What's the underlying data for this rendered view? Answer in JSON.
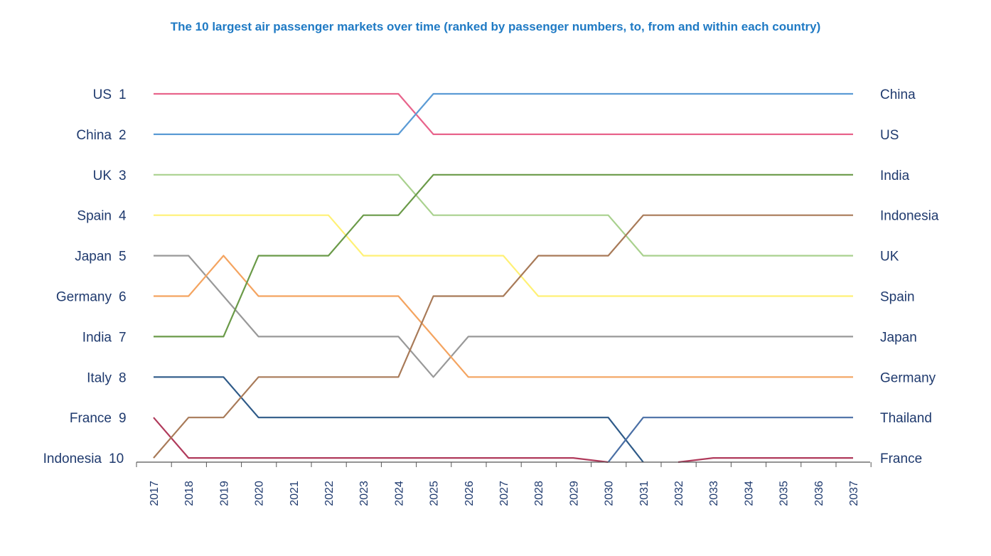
{
  "chart_data": {
    "type": "line",
    "title": "The 10 largest air passenger markets over time (ranked by passenger numbers, to, from and within each country)",
    "x": [
      2017,
      2018,
      2019,
      2020,
      2021,
      2022,
      2023,
      2024,
      2025,
      2026,
      2027,
      2028,
      2029,
      2030,
      2031,
      2032,
      2033,
      2034,
      2035,
      2036,
      2037
    ],
    "x_tick_labels": [
      "2017",
      "2018",
      "2019",
      "2020",
      "2021",
      "2022",
      "2023",
      "2024",
      "2025",
      "2026",
      "2027",
      "2028",
      "2029",
      "2030",
      "2031",
      "2032",
      "2033",
      "2034",
      "2035",
      "2036",
      "2037"
    ],
    "y_reversed": true,
    "ylim": [
      1,
      10
    ],
    "left_labels": [
      {
        "rank": 1,
        "country": "US",
        "rank_label": "1"
      },
      {
        "rank": 2,
        "country": "China",
        "rank_label": "2"
      },
      {
        "rank": 3,
        "country": "UK",
        "rank_label": "3"
      },
      {
        "rank": 4,
        "country": "Spain",
        "rank_label": "4"
      },
      {
        "rank": 5,
        "country": "Japan",
        "rank_label": "5"
      },
      {
        "rank": 6,
        "country": "Germany",
        "rank_label": "6"
      },
      {
        "rank": 7,
        "country": "India",
        "rank_label": "7"
      },
      {
        "rank": 8,
        "country": "Italy",
        "rank_label": "8"
      },
      {
        "rank": 9,
        "country": "France",
        "rank_label": "9"
      },
      {
        "rank": 10,
        "country": "Indonesia",
        "rank_label": "10"
      }
    ],
    "right_labels": [
      {
        "rank": 1,
        "country": "China"
      },
      {
        "rank": 2,
        "country": "US"
      },
      {
        "rank": 3,
        "country": "India"
      },
      {
        "rank": 4,
        "country": "Indonesia"
      },
      {
        "rank": 5,
        "country": "UK"
      },
      {
        "rank": 6,
        "country": "Spain"
      },
      {
        "rank": 7,
        "country": "Japan"
      },
      {
        "rank": 8,
        "country": "Germany"
      },
      {
        "rank": 9,
        "country": "Thailand"
      },
      {
        "rank": 10,
        "country": "France"
      }
    ],
    "series": [
      {
        "name": "US",
        "color": "#e8648c",
        "values": [
          1,
          1,
          1,
          1,
          1,
          1,
          1,
          1,
          2,
          2,
          2,
          2,
          2,
          2,
          2,
          2,
          2,
          2,
          2,
          2,
          2
        ]
      },
      {
        "name": "China",
        "color": "#5b9bd5",
        "values": [
          2,
          2,
          2,
          2,
          2,
          2,
          2,
          2,
          1,
          1,
          1,
          1,
          1,
          1,
          1,
          1,
          1,
          1,
          1,
          1,
          1
        ]
      },
      {
        "name": "UK",
        "color": "#a9d18e",
        "values": [
          3,
          3,
          3,
          3,
          3,
          3,
          3,
          3,
          4,
          4,
          4,
          4,
          4,
          4,
          5,
          5,
          5,
          5,
          5,
          5,
          5
        ]
      },
      {
        "name": "Spain",
        "color": "#fff176",
        "values": [
          4,
          4,
          4,
          4,
          4,
          4,
          5,
          5,
          5,
          5,
          5,
          6,
          6,
          6,
          6,
          6,
          6,
          6,
          6,
          6,
          6
        ]
      },
      {
        "name": "Japan",
        "color": "#999999",
        "values": [
          5,
          5,
          6,
          7,
          7,
          7,
          7,
          7,
          8,
          7,
          7,
          7,
          7,
          7,
          7,
          7,
          7,
          7,
          7,
          7,
          7
        ]
      },
      {
        "name": "Germany",
        "color": "#f4a460",
        "values": [
          6,
          6,
          5,
          6,
          6,
          6,
          6,
          6,
          7,
          8,
          8,
          8,
          8,
          8,
          8,
          8,
          8,
          8,
          8,
          8,
          8
        ]
      },
      {
        "name": "India",
        "color": "#6a9a48",
        "values": [
          7,
          7,
          7,
          5,
          5,
          5,
          4,
          4,
          3,
          3,
          3,
          3,
          3,
          3,
          3,
          3,
          3,
          3,
          3,
          3,
          3
        ]
      },
      {
        "name": "Italy",
        "color": "#2e5a88",
        "values": [
          8,
          8,
          8,
          9,
          9,
          9,
          9,
          9,
          9,
          9,
          9,
          9,
          9,
          9,
          11,
          null,
          null,
          null,
          null,
          null,
          null
        ]
      },
      {
        "name": "France",
        "color": "#b03a5b",
        "values": [
          9,
          10,
          10,
          10,
          10,
          10,
          10,
          10,
          10,
          10,
          10,
          10,
          10,
          11,
          null,
          null,
          null,
          null,
          null,
          null,
          null
        ],
        "values_after": [
          null,
          null,
          null,
          null,
          null,
          null,
          null,
          null,
          null,
          null,
          null,
          null,
          null,
          null,
          null,
          11,
          10,
          10,
          10,
          10,
          10
        ]
      },
      {
        "name": "Indonesia",
        "color": "#a87a58",
        "values": [
          10,
          9,
          9,
          8,
          8,
          8,
          8,
          8,
          6,
          6,
          6,
          5,
          5,
          5,
          4,
          4,
          4,
          4,
          4,
          4,
          4
        ]
      },
      {
        "name": "Thailand",
        "color": "#4a6fa5",
        "values": [
          null,
          null,
          null,
          null,
          null,
          null,
          null,
          null,
          null,
          null,
          null,
          null,
          null,
          11,
          9,
          9,
          9,
          9,
          9,
          9,
          9
        ]
      }
    ]
  }
}
